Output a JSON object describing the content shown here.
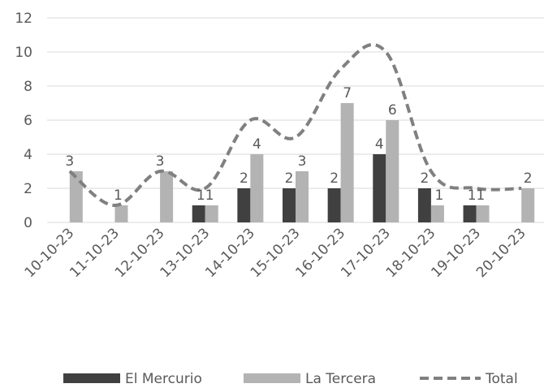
{
  "chart_data": {
    "type": "bar",
    "categories": [
      "10-10-23",
      "11-10-23",
      "12-10-23",
      "13-10-23",
      "14-10-23",
      "15-10-23",
      "16-10-23",
      "17-10-23",
      "18-10-23",
      "19-10-23",
      "20-10-23"
    ],
    "series": [
      {
        "name": "El Mercurio",
        "kind": "bar",
        "color": "#404040",
        "values": [
          0,
          0,
          0,
          1,
          2,
          2,
          2,
          4,
          2,
          1,
          0
        ]
      },
      {
        "name": "La Tercera",
        "kind": "bar",
        "color": "#b3b3b3",
        "values": [
          3,
          1,
          3,
          1,
          4,
          3,
          7,
          6,
          1,
          1,
          2
        ]
      },
      {
        "name": "Total",
        "kind": "line",
        "color": "#808080",
        "style": "dashed",
        "values": [
          3,
          1,
          3,
          2,
          6,
          5,
          9,
          10,
          3,
          2,
          2
        ]
      }
    ],
    "data_labels": [
      {
        "text": "3",
        "category": 0
      },
      {
        "text": "1",
        "category": 1
      },
      {
        "text": "3",
        "category": 2
      },
      {
        "text": "11",
        "category": 3
      },
      {
        "text": "2",
        "category": 4
      },
      {
        "text": "4",
        "category": 4
      },
      {
        "text": "2",
        "category": 5
      },
      {
        "text": "3",
        "category": 5
      },
      {
        "text": "2",
        "category": 6
      },
      {
        "text": "7",
        "category": 6
      },
      {
        "text": "4",
        "category": 7
      },
      {
        "text": "6",
        "category": 7
      },
      {
        "text": "2",
        "category": 8
      },
      {
        "text": "1",
        "category": 8
      },
      {
        "text": "11",
        "category": 9
      },
      {
        "text": "2",
        "category": 10
      }
    ],
    "yticks": [
      "0",
      "2",
      "4",
      "6",
      "8",
      "10",
      "12"
    ],
    "ylim": [
      0,
      12
    ],
    "grid": true,
    "legend": "bottom",
    "title": "",
    "xlabel": "",
    "ylabel": ""
  }
}
